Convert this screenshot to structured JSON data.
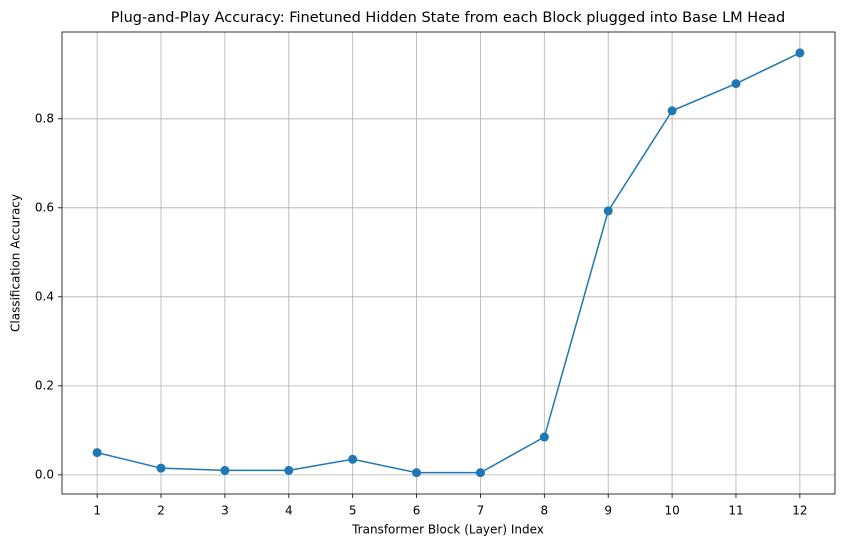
{
  "chart_data": {
    "type": "line",
    "title": "Plug-and-Play Accuracy: Finetuned Hidden State from each Block plugged into Base LM Head",
    "x_label": "Transformer Block (Layer) Index",
    "y_label": "Classification Accuracy",
    "x": [
      1,
      2,
      3,
      4,
      5,
      6,
      7,
      8,
      9,
      10,
      11,
      12
    ],
    "values": [
      0.05,
      0.015,
      0.01,
      0.01,
      0.035,
      0.005,
      0.005,
      0.085,
      0.593,
      0.818,
      0.879,
      0.948
    ],
    "color": "#1f77b4",
    "xlim": [
      0.45,
      12.55
    ],
    "xticks": [
      1,
      2,
      3,
      4,
      5,
      6,
      7,
      8,
      9,
      10,
      11,
      12
    ],
    "ylim": [
      -0.043,
      0.995
    ],
    "yticks": [
      {
        "value": 0,
        "label": "0.0"
      },
      0.2,
      0.4,
      0.6,
      0.8
    ],
    "grid": true
  }
}
